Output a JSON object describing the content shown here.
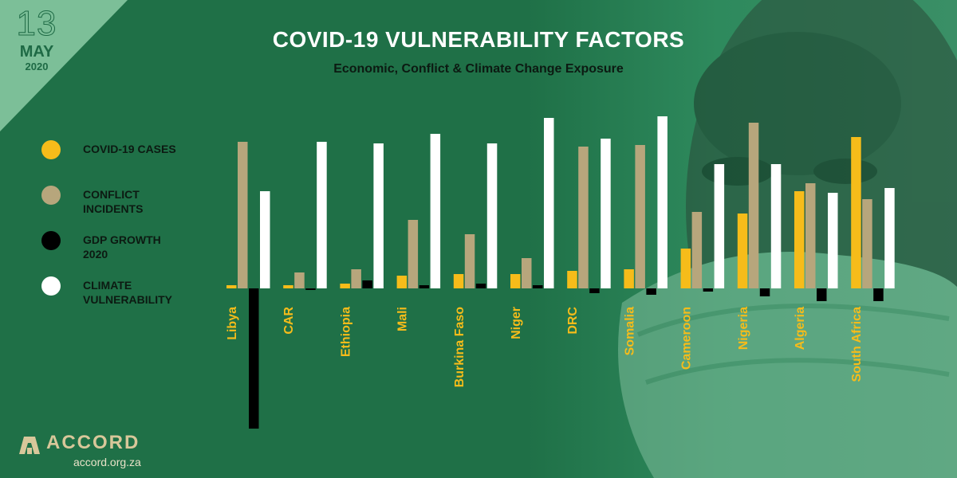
{
  "date": {
    "day": "13",
    "month": "MAY",
    "year": "2020"
  },
  "header": {
    "title": "COVID-19 VULNERABILITY FACTORS",
    "subtitle": "Economic, Conflict & Climate Change Exposure"
  },
  "legend": [
    {
      "label": "COVID-19 CASES",
      "color": "#f6bc1a"
    },
    {
      "label": "CONFLICT\nINCIDENTS",
      "color": "#b7a67c"
    },
    {
      "label": "GDP GROWTH\n2020",
      "color": "#000000"
    },
    {
      "label": "CLIMATE\nVULNERABILITY",
      "color": "#ffffff"
    }
  ],
  "brand": {
    "name": "ACCORD",
    "url": "accord.org.za"
  },
  "colors": {
    "background": "#1f7047",
    "label": "#f6bc1a"
  },
  "chart_data": {
    "type": "bar",
    "title": "COVID-19 VULNERABILITY FACTORS",
    "subtitle": "Economic, Conflict & Climate Change Exposure",
    "legend_position": "left",
    "grid": false,
    "axis_scale_printed": false,
    "categories": [
      "Libya",
      "CAR",
      "Ethiopia",
      "Mali",
      "Burkina Faso",
      "Niger",
      "DRC",
      "Somalia",
      "Cameroon",
      "Nigeria",
      "Algeria",
      "South Africa"
    ],
    "series": [
      {
        "name": "COVID-19 CASES",
        "color": "#f6bc1a",
        "values": [
          2,
          2,
          3,
          8,
          9,
          9,
          11,
          12,
          25,
          47,
          61,
          95
        ]
      },
      {
        "name": "CONFLICT INCIDENTS",
        "color": "#b7a67c",
        "values": [
          92,
          10,
          12,
          43,
          34,
          19,
          89,
          90,
          48,
          104,
          66,
          56
        ]
      },
      {
        "name": "GDP GROWTH 2020",
        "color": "#000000",
        "values": [
          -88,
          -1,
          5,
          2,
          3,
          2,
          -3,
          -4,
          -2,
          -5,
          -8,
          -8
        ]
      },
      {
        "name": "CLIMATE VULNERABILITY",
        "color": "#ffffff",
        "values": [
          61,
          92,
          91,
          97,
          91,
          107,
          94,
          108,
          78,
          78,
          60,
          63
        ]
      }
    ]
  }
}
